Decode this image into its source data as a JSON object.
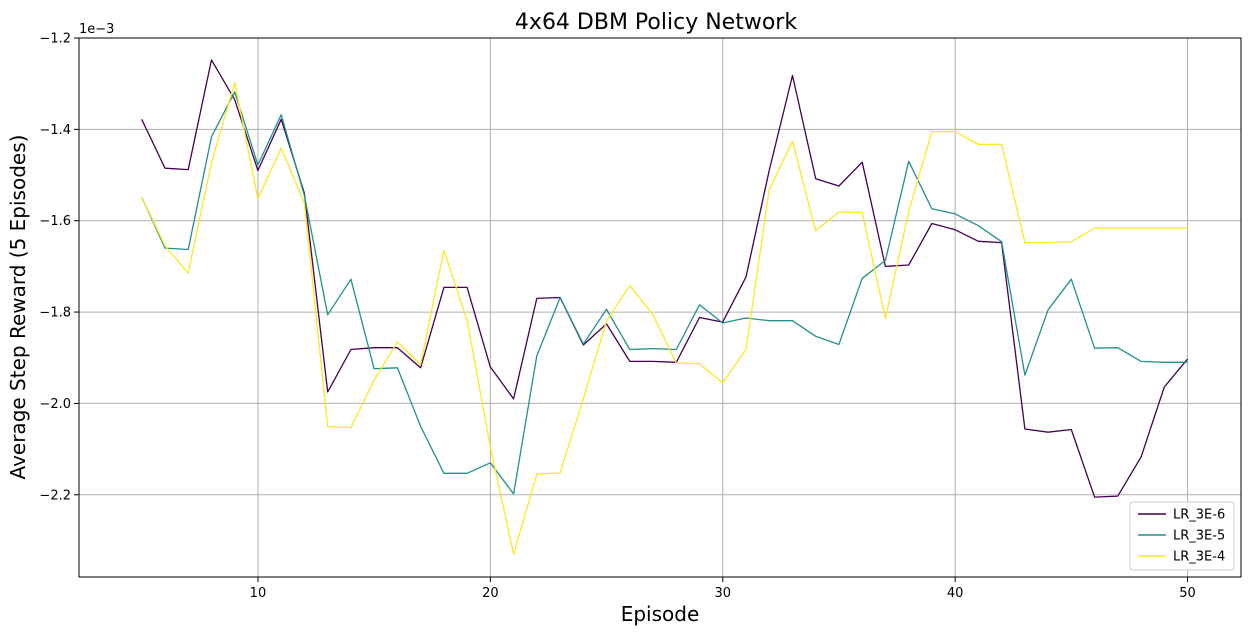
{
  "chart_data": {
    "type": "line",
    "title": "4x64 DBM Policy Network",
    "xlabel": "Episode",
    "ylabel": "Average Step Reward (5 Episodes)",
    "offset_label": "1e−3",
    "xlim": [
      2.3,
      52.3
    ],
    "ylim": [
      -2.38,
      -1.2
    ],
    "x_ticks": [
      10,
      20,
      30,
      40,
      50
    ],
    "x_tick_labels": [
      "10",
      "20",
      "30",
      "40",
      "50"
    ],
    "y_ticks": [
      -2.2,
      -2.0,
      -1.8,
      -1.6,
      -1.4,
      -1.2
    ],
    "y_tick_labels": [
      "−2.2",
      "−2.0",
      "−1.8",
      "−1.6",
      "−1.4",
      "−1.2"
    ],
    "grid": true,
    "legend_position": "bottom-right",
    "x": [
      5,
      6,
      7,
      8,
      9,
      10,
      11,
      12,
      13,
      14,
      15,
      16,
      17,
      18,
      19,
      20,
      21,
      22,
      23,
      24,
      25,
      26,
      27,
      28,
      29,
      30,
      31,
      32,
      33,
      34,
      35,
      36,
      37,
      38,
      39,
      40,
      41,
      42,
      43,
      44,
      45,
      46,
      47,
      48,
      49,
      50
    ],
    "series": [
      {
        "name": "LR_3E-6",
        "color": "#440154",
        "values": [
          -1.378,
          -1.485,
          -1.488,
          -1.248,
          -1.335,
          -1.49,
          -1.378,
          -1.54,
          -1.975,
          -1.882,
          -1.878,
          -1.878,
          -1.922,
          -1.746,
          -1.746,
          -1.92,
          -1.99,
          -1.77,
          -1.768,
          -1.872,
          -1.826,
          -1.908,
          -1.908,
          -1.91,
          -1.812,
          -1.822,
          -1.723,
          -1.49,
          -1.282,
          -1.508,
          -1.524,
          -1.472,
          -1.7,
          -1.697,
          -1.606,
          -1.62,
          -1.645,
          -1.648,
          -2.056,
          -2.063,
          -2.057,
          -2.205,
          -2.203,
          -2.117,
          -1.964,
          -1.903
        ]
      },
      {
        "name": "LR_3E-5",
        "color": "#21918c",
        "values": [
          -1.548,
          -1.66,
          -1.663,
          -1.416,
          -1.318,
          -1.478,
          -1.368,
          -1.545,
          -1.806,
          -1.728,
          -1.924,
          -1.922,
          -2.05,
          -2.153,
          -2.153,
          -2.13,
          -2.198,
          -1.896,
          -1.768,
          -1.87,
          -1.794,
          -1.882,
          -1.88,
          -1.882,
          -1.784,
          -1.824,
          -1.813,
          -1.819,
          -1.819,
          -1.853,
          -1.871,
          -1.726,
          -1.687,
          -1.47,
          -1.574,
          -1.585,
          -1.611,
          -1.646,
          -1.938,
          -1.795,
          -1.728,
          -1.879,
          -1.878,
          -1.908,
          -1.91,
          -1.91
        ]
      },
      {
        "name": "LR_3E-4",
        "color": "#fde725",
        "values": [
          -1.548,
          -1.655,
          -1.715,
          -1.473,
          -1.298,
          -1.552,
          -1.441,
          -1.562,
          -2.051,
          -2.053,
          -1.949,
          -1.865,
          -1.915,
          -1.665,
          -1.818,
          -2.095,
          -2.33,
          -2.155,
          -2.152,
          -1.99,
          -1.82,
          -1.742,
          -1.806,
          -1.912,
          -1.913,
          -1.955,
          -1.882,
          -1.532,
          -1.426,
          -1.622,
          -1.581,
          -1.582,
          -1.814,
          -1.58,
          -1.405,
          -1.405,
          -1.433,
          -1.433,
          -1.648,
          -1.648,
          -1.646,
          -1.616,
          -1.616,
          -1.616,
          -1.616,
          -1.616
        ]
      }
    ]
  }
}
